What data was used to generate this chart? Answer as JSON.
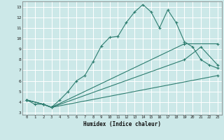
{
  "xlabel": "Humidex (Indice chaleur)",
  "background_color": "#cce8e8",
  "grid_color": "#ffffff",
  "line_color": "#2e7d70",
  "xlim": [
    -0.5,
    23.5
  ],
  "ylim": [
    2.8,
    13.5
  ],
  "xticks": [
    0,
    1,
    2,
    3,
    4,
    5,
    6,
    7,
    8,
    9,
    10,
    11,
    12,
    13,
    14,
    15,
    16,
    17,
    18,
    19,
    20,
    21,
    22,
    23
  ],
  "yticks": [
    3,
    4,
    5,
    6,
    7,
    8,
    9,
    10,
    11,
    12,
    13
  ],
  "series1_x": [
    0,
    1,
    2,
    3,
    4,
    5,
    6,
    7,
    8,
    9,
    10,
    11,
    12,
    13,
    14,
    15,
    16,
    17,
    18,
    19,
    20,
    21,
    22,
    23
  ],
  "series1_y": [
    4.2,
    3.8,
    3.8,
    3.5,
    4.2,
    5.0,
    6.0,
    6.5,
    7.8,
    9.3,
    10.1,
    10.2,
    11.5,
    12.5,
    13.2,
    12.5,
    11.0,
    12.7,
    11.5,
    9.7,
    9.2,
    8.0,
    7.5,
    7.2
  ],
  "series2_x": [
    0,
    2,
    3,
    19,
    23
  ],
  "series2_y": [
    4.2,
    3.8,
    3.5,
    9.5,
    9.5
  ],
  "series3_x": [
    0,
    2,
    3,
    19,
    21,
    23
  ],
  "series3_y": [
    4.2,
    3.8,
    3.5,
    8.0,
    9.2,
    7.5
  ],
  "series4_x": [
    0,
    2,
    3,
    23
  ],
  "series4_y": [
    4.2,
    3.8,
    3.5,
    6.5
  ]
}
